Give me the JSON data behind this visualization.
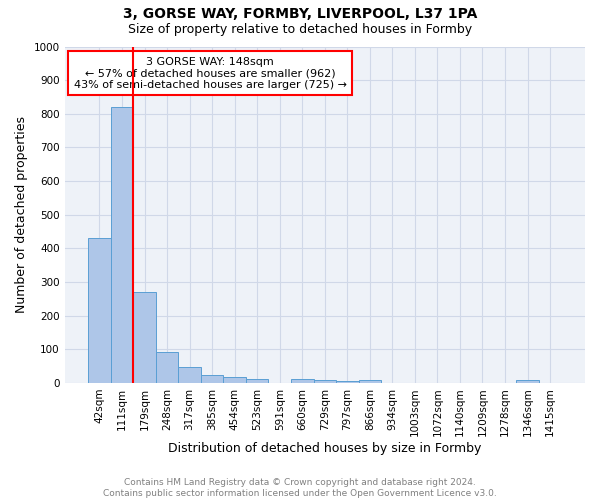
{
  "title_line1": "3, GORSE WAY, FORMBY, LIVERPOOL, L37 1PA",
  "title_line2": "Size of property relative to detached houses in Formby",
  "xlabel": "Distribution of detached houses by size in Formby",
  "ylabel": "Number of detached properties",
  "footnote": "Contains HM Land Registry data © Crown copyright and database right 2024.\nContains public sector information licensed under the Open Government Licence v3.0.",
  "bin_labels": [
    "42sqm",
    "111sqm",
    "179sqm",
    "248sqm",
    "317sqm",
    "385sqm",
    "454sqm",
    "523sqm",
    "591sqm",
    "660sqm",
    "729sqm",
    "797sqm",
    "866sqm",
    "934sqm",
    "1003sqm",
    "1072sqm",
    "1140sqm",
    "1209sqm",
    "1278sqm",
    "1346sqm",
    "1415sqm"
  ],
  "bar_values": [
    430,
    820,
    270,
    93,
    47,
    23,
    17,
    10,
    0,
    10,
    8,
    5,
    8,
    0,
    0,
    0,
    0,
    0,
    0,
    8,
    0
  ],
  "bar_color": "#aec6e8",
  "bar_edge_color": "#5a9fd4",
  "vline_color": "red",
  "annotation_text": "3 GORSE WAY: 148sqm\n← 57% of detached houses are smaller (962)\n43% of semi-detached houses are larger (725) →",
  "annotation_box_color": "white",
  "annotation_box_edge_color": "red",
  "ylim": [
    0,
    1000
  ],
  "yticks": [
    0,
    100,
    200,
    300,
    400,
    500,
    600,
    700,
    800,
    900,
    1000
  ],
  "grid_color": "#d0d8e8",
  "background_color": "#eef2f8",
  "title1_fontsize": 10,
  "title2_fontsize": 9,
  "xlabel_fontsize": 9,
  "ylabel_fontsize": 9,
  "tick_fontsize": 7.5,
  "footnote_fontsize": 6.5,
  "annotation_fontsize": 8
}
